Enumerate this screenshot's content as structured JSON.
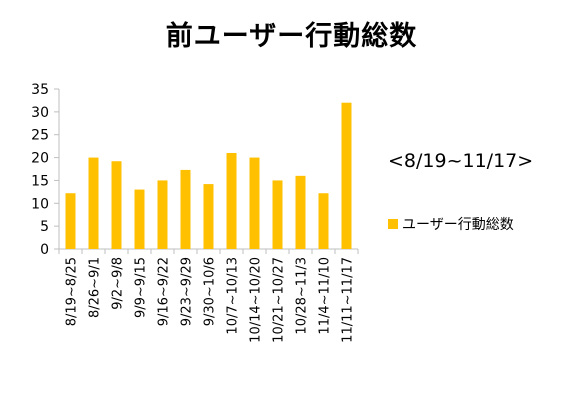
{
  "chart_data": {
    "type": "bar",
    "title": "前ユーザー行動総数",
    "subtitle": "<8/19~11/17>",
    "categories": [
      "8/19~8/25",
      "8/26~9/1",
      "9/2~9/8",
      "9/9~9/15",
      "9/16~9/22",
      "9/23~9/29",
      "9/30~10/6",
      "10/7~10/13",
      "10/14~10/20",
      "10/21~10/27",
      "10/28~11/3",
      "11/4~11/10",
      "11/11~11/17"
    ],
    "series": [
      {
        "name": "ユーザー行動総数",
        "values": [
          12.2,
          20,
          19.2,
          13,
          15,
          17.3,
          14.2,
          21,
          20,
          15,
          16,
          12.2,
          32
        ],
        "color": "#ffc000"
      }
    ],
    "yticks": [
      "0",
      "5",
      "10",
      "15",
      "20",
      "25",
      "30",
      "35"
    ],
    "ylim": [
      0,
      35
    ],
    "grid": false,
    "legend_position": "right"
  }
}
